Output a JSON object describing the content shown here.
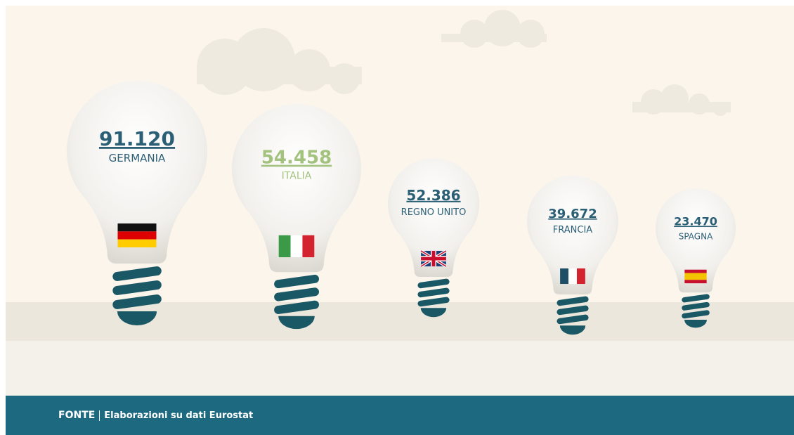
{
  "items": [
    {
      "value": "91.120",
      "label": "GERMANIA"
    },
    {
      "value": "54.458",
      "label": "ITALIA"
    },
    {
      "value": "52.386",
      "label": "REGNO UNITO"
    },
    {
      "value": "39.672",
      "label": "FRANCIA"
    },
    {
      "value": "23.470",
      "label": "SPAGNA"
    }
  ],
  "footer": {
    "title": "FONTE",
    "text": "Elaborazioni su dati Eurostat"
  }
}
